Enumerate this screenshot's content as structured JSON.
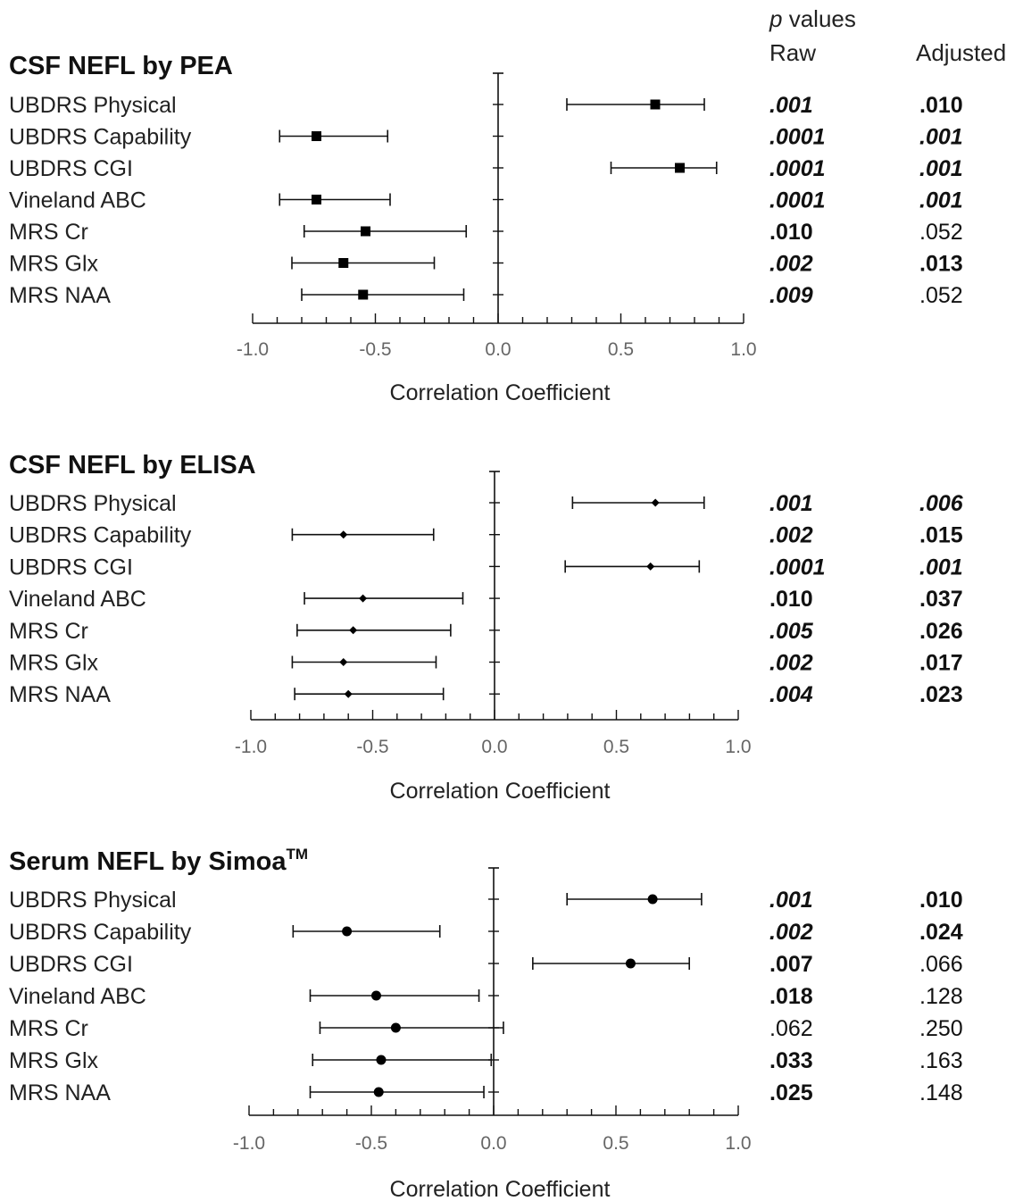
{
  "header": {
    "p_symbol": "p",
    "p_values_label": "values",
    "raw_label": "Raw",
    "adjusted_label": "Adjusted"
  },
  "chart_data": [
    {
      "type": "forest",
      "title": "CSF NEFL by PEA",
      "marker": "square",
      "xlabel": "Correlation Coefficient",
      "xlim": [
        -1.0,
        1.0
      ],
      "xticks": [
        "-1.0",
        "-0.5",
        "0.0",
        "0.5",
        "1.0"
      ],
      "rows": [
        {
          "label": "UBDRS Physical",
          "estimate": 0.64,
          "ci": [
            0.28,
            0.84
          ],
          "p_raw": ".001",
          "p_raw_style": "bold-italic",
          "p_adj": ".010",
          "p_adj_style": "bold"
        },
        {
          "label": "UBDRS Capability",
          "estimate": -0.74,
          "ci": [
            -0.89,
            -0.45
          ],
          "p_raw": ".0001",
          "p_raw_style": "bold-italic",
          "p_adj": ".001",
          "p_adj_style": "bold-italic"
        },
        {
          "label": "UBDRS CGI",
          "estimate": 0.74,
          "ci": [
            0.46,
            0.89
          ],
          "p_raw": ".0001",
          "p_raw_style": "bold-italic",
          "p_adj": ".001",
          "p_adj_style": "bold-italic"
        },
        {
          "label": "Vineland ABC",
          "estimate": -0.74,
          "ci": [
            -0.89,
            -0.44
          ],
          "p_raw": ".0001",
          "p_raw_style": "bold-italic",
          "p_adj": ".001",
          "p_adj_style": "bold-italic"
        },
        {
          "label": "MRS Cr",
          "estimate": -0.54,
          "ci": [
            -0.79,
            -0.13
          ],
          "p_raw": ".010",
          "p_raw_style": "bold",
          "p_adj": ".052",
          "p_adj_style": "normal"
        },
        {
          "label": "MRS Glx",
          "estimate": -0.63,
          "ci": [
            -0.84,
            -0.26
          ],
          "p_raw": ".002",
          "p_raw_style": "bold-italic",
          "p_adj": ".013",
          "p_adj_style": "bold"
        },
        {
          "label": "MRS NAA",
          "estimate": -0.55,
          "ci": [
            -0.8,
            -0.14
          ],
          "p_raw": ".009",
          "p_raw_style": "bold-italic",
          "p_adj": ".052",
          "p_adj_style": "normal"
        }
      ]
    },
    {
      "type": "forest",
      "title": "CSF NEFL by ELISA",
      "marker": "diamond",
      "xlabel": "Correlation Coefficient",
      "xlim": [
        -1.0,
        1.0
      ],
      "xticks": [
        "-1.0",
        "-0.5",
        "0.0",
        "0.5",
        "1.0"
      ],
      "rows": [
        {
          "label": "UBDRS Physical",
          "estimate": 0.66,
          "ci": [
            0.32,
            0.86
          ],
          "p_raw": ".001",
          "p_raw_style": "bold-italic",
          "p_adj": ".006",
          "p_adj_style": "bold-italic"
        },
        {
          "label": "UBDRS Capability",
          "estimate": -0.62,
          "ci": [
            -0.83,
            -0.25
          ],
          "p_raw": ".002",
          "p_raw_style": "bold-italic",
          "p_adj": ".015",
          "p_adj_style": "bold"
        },
        {
          "label": "UBDRS CGI",
          "estimate": 0.64,
          "ci": [
            0.29,
            0.84
          ],
          "p_raw": ".0001",
          "p_raw_style": "bold-italic",
          "p_adj": ".001",
          "p_adj_style": "bold-italic"
        },
        {
          "label": "Vineland ABC",
          "estimate": -0.54,
          "ci": [
            -0.78,
            -0.13
          ],
          "p_raw": ".010",
          "p_raw_style": "bold",
          "p_adj": ".037",
          "p_adj_style": "bold"
        },
        {
          "label": "MRS Cr",
          "estimate": -0.58,
          "ci": [
            -0.81,
            -0.18
          ],
          "p_raw": ".005",
          "p_raw_style": "bold-italic",
          "p_adj": ".026",
          "p_adj_style": "bold"
        },
        {
          "label": "MRS Glx",
          "estimate": -0.62,
          "ci": [
            -0.83,
            -0.24
          ],
          "p_raw": ".002",
          "p_raw_style": "bold-italic",
          "p_adj": ".017",
          "p_adj_style": "bold"
        },
        {
          "label": "MRS NAA",
          "estimate": -0.6,
          "ci": [
            -0.82,
            -0.21
          ],
          "p_raw": ".004",
          "p_raw_style": "bold-italic",
          "p_adj": ".023",
          "p_adj_style": "bold"
        }
      ]
    },
    {
      "type": "forest",
      "title": "Serum NEFL by Simoa",
      "title_superscript": "TM",
      "marker": "circle",
      "xlabel": "Correlation Coefficient",
      "xlim": [
        -1.0,
        1.0
      ],
      "xticks": [
        "-1.0",
        "-0.5",
        "0.0",
        "0.5",
        "1.0"
      ],
      "rows": [
        {
          "label": "UBDRS Physical",
          "estimate": 0.65,
          "ci": [
            0.3,
            0.85
          ],
          "p_raw": ".001",
          "p_raw_style": "bold-italic",
          "p_adj": ".010",
          "p_adj_style": "bold"
        },
        {
          "label": "UBDRS Capability",
          "estimate": -0.6,
          "ci": [
            -0.82,
            -0.22
          ],
          "p_raw": ".002",
          "p_raw_style": "bold-italic",
          "p_adj": ".024",
          "p_adj_style": "bold"
        },
        {
          "label": "UBDRS CGI",
          "estimate": 0.56,
          "ci": [
            0.16,
            0.8
          ],
          "p_raw": ".007",
          "p_raw_style": "bold",
          "p_adj": ".066",
          "p_adj_style": "normal"
        },
        {
          "label": "Vineland ABC",
          "estimate": -0.48,
          "ci": [
            -0.75,
            -0.06
          ],
          "p_raw": ".018",
          "p_raw_style": "bold",
          "p_adj": ".128",
          "p_adj_style": "normal"
        },
        {
          "label": "MRS Cr",
          "estimate": -0.4,
          "ci": [
            -0.71,
            0.04
          ],
          "p_raw": ".062",
          "p_raw_style": "normal",
          "p_adj": ".250",
          "p_adj_style": "normal"
        },
        {
          "label": "MRS Glx",
          "estimate": -0.46,
          "ci": [
            -0.74,
            -0.01
          ],
          "p_raw": ".033",
          "p_raw_style": "bold",
          "p_adj": ".163",
          "p_adj_style": "normal"
        },
        {
          "label": "MRS NAA",
          "estimate": -0.47,
          "ci": [
            -0.75,
            -0.04
          ],
          "p_raw": ".025",
          "p_raw_style": "bold",
          "p_adj": ".148",
          "p_adj_style": "normal"
        }
      ]
    }
  ]
}
